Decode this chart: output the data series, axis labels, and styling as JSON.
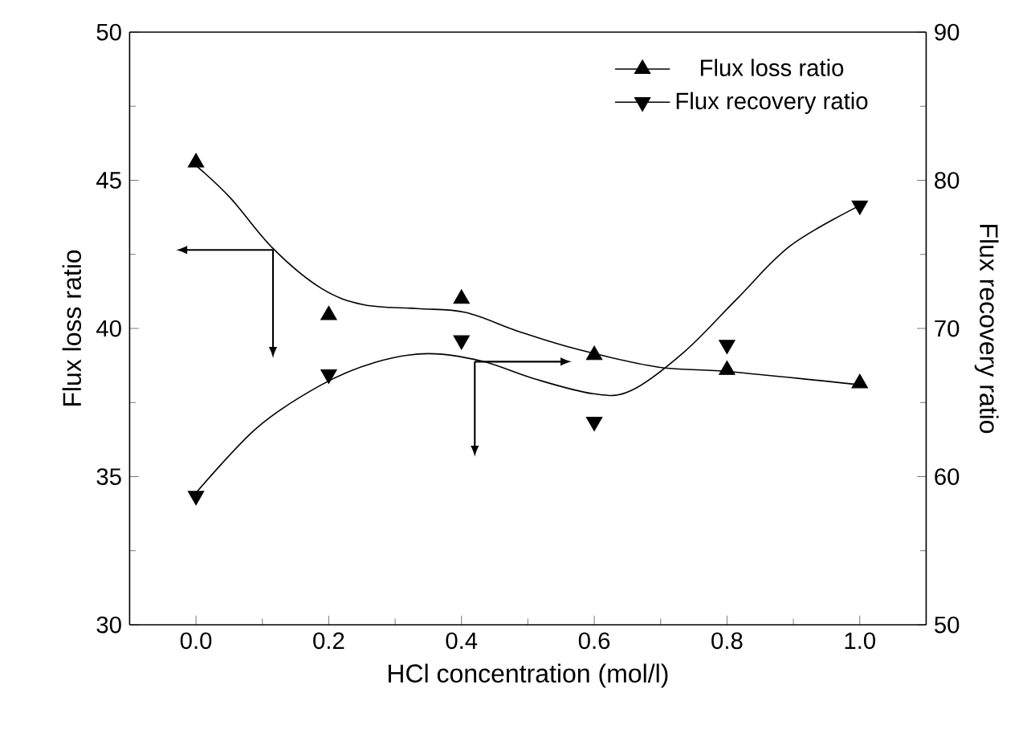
{
  "chart_data": {
    "type": "scatter",
    "xlabel": "HCl concentration (mol/l)",
    "ylabel": "Flux loss ratio",
    "y2label": "Flux recovery ratio",
    "xlim": [
      -0.1,
      1.1
    ],
    "xticks": [
      {
        "value": 0,
        "label": "0.0"
      },
      {
        "value": 0.2,
        "label": "0.2"
      },
      {
        "value": 0.4,
        "label": "0.4"
      },
      {
        "value": 0.6,
        "label": "0.6"
      },
      {
        "value": 0.8,
        "label": "0.8"
      },
      {
        "value": 1.0,
        "label": "1.0"
      }
    ],
    "ylim": [
      30,
      50
    ],
    "yticks": [
      30,
      35,
      40,
      45,
      50
    ],
    "y2lim": [
      50,
      90
    ],
    "y2ticks": [
      50,
      60,
      70,
      80,
      90
    ],
    "legend": "top right",
    "grid": false,
    "series": [
      {
        "name": "Flux loss ratio",
        "marker": "triangle",
        "color": "#000000",
        "x": [
          0,
          0.2,
          0.4,
          0.6,
          0.8,
          1.0
        ],
        "values": [
          45.6,
          40.45,
          41.0,
          39.1,
          38.6,
          38.15
        ]
      },
      {
        "name": "Flux recovery ratio",
        "marker": "triangle down",
        "axis": "y2",
        "color": "#000000",
        "x": [
          0,
          0.2,
          0.4,
          0.6,
          0.8,
          1.0
        ],
        "values": [
          58.7,
          66.9,
          69.2,
          63.7,
          68.9,
          78.3
        ]
      },
      {
        "type": "line",
        "marker": "none",
        "color": "#000000",
        "x": [
          0,
          0.052,
          0.116,
          0.189,
          0.253,
          0.333,
          0.406,
          0.486,
          0.574,
          0.695,
          0.8,
          1.0
        ],
        "values": [
          45.5,
          44.4,
          42.7,
          41.35,
          40.8,
          40.67,
          40.54,
          39.9,
          39.3,
          38.7,
          38.55,
          38.1
        ]
      },
      {
        "type": "line",
        "marker": "none",
        "axis": "y2",
        "color": "#000000",
        "x": [
          0,
          0.092,
          0.189,
          0.269,
          0.349,
          0.43,
          0.51,
          0.598,
          0.655,
          0.735,
          0.815,
          0.896,
          1.0
        ],
        "values": [
          58.9,
          63.3,
          66.2,
          67.7,
          68.3,
          67.8,
          66.6,
          65.6,
          65.8,
          68.4,
          72.0,
          75.6,
          78.3
        ]
      }
    ]
  }
}
